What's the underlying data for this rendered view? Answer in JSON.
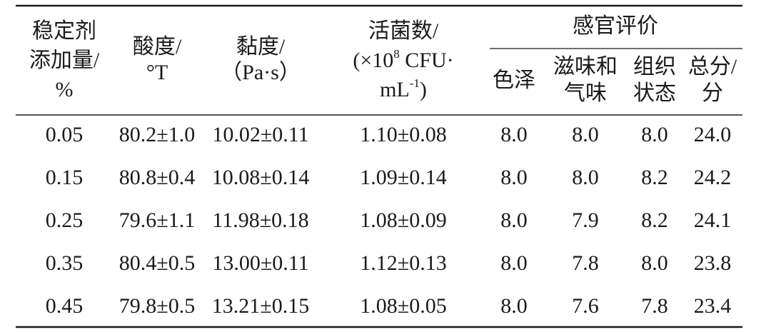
{
  "table": {
    "header": {
      "col0": [
        "稳定剂",
        "添加量/",
        "%"
      ],
      "col1": [
        "酸度/",
        "°T"
      ],
      "col2": [
        "黏度/",
        "（Pa·s）"
      ],
      "col3": {
        "line1": "活菌数/",
        "line2": [
          "(×10",
          "8",
          " CFU·"
        ],
        "line3": [
          "mL",
          "-1",
          ")"
        ]
      },
      "group": "感官评价",
      "sub": [
        [
          "色泽"
        ],
        [
          "滋味和",
          "气味"
        ],
        [
          "组织",
          "状态"
        ],
        [
          "总分/",
          "分"
        ]
      ]
    },
    "rows": [
      [
        "0.05",
        "80.2±1.0",
        "10.02±0.11",
        "1.10±0.08",
        "8.0",
        "8.0",
        "8.0",
        "24.0"
      ],
      [
        "0.15",
        "80.8±0.4",
        "10.08±0.14",
        "1.09±0.14",
        "8.0",
        "8.0",
        "8.2",
        "24.2"
      ],
      [
        "0.25",
        "79.6±1.1",
        "11.98±0.18",
        "1.08±0.09",
        "8.0",
        "7.9",
        "8.2",
        "24.1"
      ],
      [
        "0.35",
        "80.4±0.5",
        "13.00±0.11",
        "1.12±0.13",
        "8.0",
        "7.8",
        "8.0",
        "23.8"
      ],
      [
        "0.45",
        "79.8±0.5",
        "13.21±0.15",
        "1.08±0.05",
        "8.0",
        "7.6",
        "7.8",
        "23.4"
      ]
    ]
  }
}
